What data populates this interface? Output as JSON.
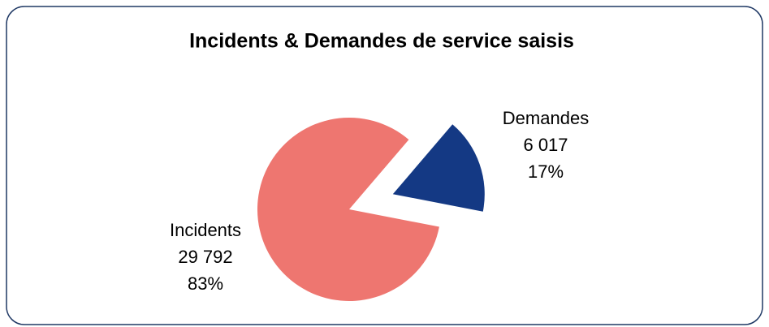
{
  "chart_data": {
    "type": "pie",
    "title": "Incidents & Demandes de service saisis",
    "categories": [
      "Incidents",
      "Demandes"
    ],
    "values": [
      29792,
      6017
    ],
    "value_labels": [
      "29 792",
      "6 017"
    ],
    "percent_labels": [
      "83%",
      "17%"
    ],
    "colors": [
      "#ee7670",
      "#143984"
    ],
    "exploded": [
      false,
      true
    ]
  }
}
